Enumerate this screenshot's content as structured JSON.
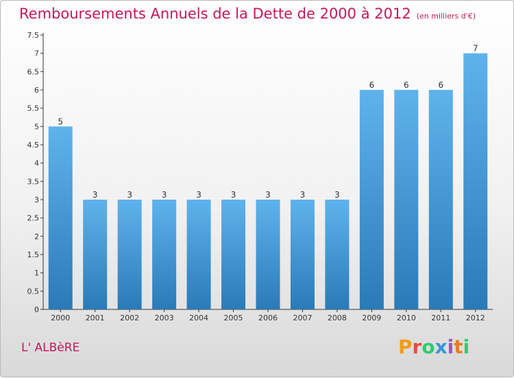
{
  "header": {
    "title": "Remboursements Annuels de la Dette de 2000 à 2012",
    "subtitle": "(en milliers d'€)"
  },
  "footer": {
    "commune": "L' ALBèRE",
    "logo_letters": [
      "P",
      "r",
      "o",
      "x",
      "i",
      "t",
      "i"
    ],
    "logo_colors": [
      "#f39c12",
      "#e74c3c",
      "#2ecc71",
      "#3498db",
      "#9b59b6",
      "#e67e22",
      "#2ecc71"
    ]
  },
  "colors": {
    "bar_top": "#5fb3ec",
    "bar_bottom": "#2a7ab8",
    "title": "#c2185b",
    "axis": "#333333"
  },
  "chart_data": {
    "type": "bar",
    "categories": [
      "2000",
      "2001",
      "2002",
      "2003",
      "2004",
      "2005",
      "2006",
      "2007",
      "2008",
      "2009",
      "2010",
      "2011",
      "2012"
    ],
    "values": [
      5,
      3,
      3,
      3,
      3,
      3,
      3,
      3,
      3,
      6,
      6,
      6,
      7
    ],
    "data_labels": [
      "5",
      "3",
      "3",
      "3",
      "3",
      "3",
      "3",
      "3",
      "3",
      "6",
      "6",
      "6",
      "7"
    ],
    "y_ticks": [
      "0",
      "0.5",
      "1",
      "1.5",
      "2",
      "2.5",
      "3",
      "3.5",
      "4",
      "4.5",
      "5",
      "5.5",
      "6",
      "6.5",
      "7",
      "7.5"
    ],
    "ylim": [
      0,
      7.5
    ],
    "grid": false
  }
}
